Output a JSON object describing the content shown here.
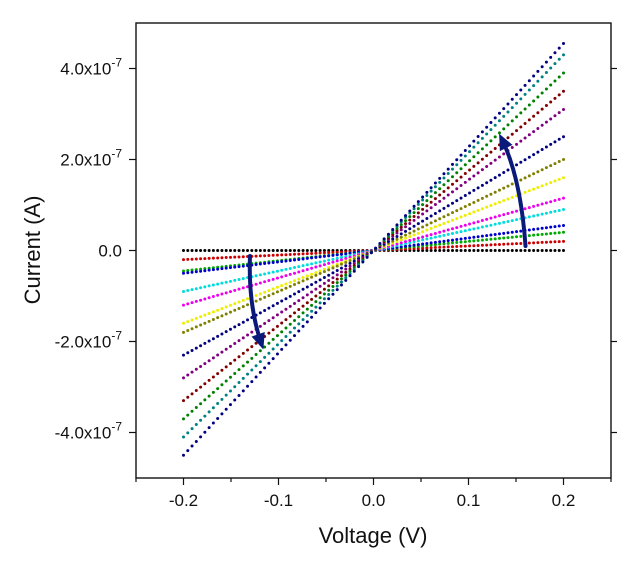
{
  "chart_data": {
    "type": "scatter",
    "title": "",
    "xlabel": "Voltage (V)",
    "ylabel": "Current (A)",
    "xlim": [
      -0.25,
      0.25
    ],
    "ylim": [
      -5e-07,
      5e-07
    ],
    "x_ticks": [
      {
        "value": -0.2,
        "label": "-0.2"
      },
      {
        "value": -0.1,
        "label": "-0.1"
      },
      {
        "value": 0.0,
        "label": "0.0"
      },
      {
        "value": 0.1,
        "label": "0.1"
      },
      {
        "value": 0.2,
        "label": "0.2"
      }
    ],
    "y_ticks": [
      {
        "value": 4e-07,
        "mantissa": "4.0x10",
        "exponent": "-7"
      },
      {
        "value": 2e-07,
        "mantissa": "2.0x10",
        "exponent": "-7"
      },
      {
        "value": 0.0,
        "mantissa": "0.0",
        "exponent": ""
      },
      {
        "value": -2e-07,
        "mantissa": "-2.0x10",
        "exponent": "-7"
      },
      {
        "value": -4e-07,
        "mantissa": "-4.0x10",
        "exponent": "-7"
      }
    ],
    "x_range": [
      -0.2,
      0.2
    ],
    "points_per_series": 90,
    "series": [
      {
        "color": "#000000",
        "values": [
          0.0,
          0.0
        ]
      },
      {
        "color": "#cc0000",
        "values": [
          -2e-08,
          2e-08
        ]
      },
      {
        "color": "#00aa00",
        "values": [
          -4.5e-08,
          4e-08
        ]
      },
      {
        "color": "#0000cc",
        "values": [
          -5e-08,
          5.5e-08
        ]
      },
      {
        "color": "#00dddd",
        "values": [
          -9e-08,
          9e-08
        ]
      },
      {
        "color": "#ee00ee",
        "values": [
          -1.2e-07,
          1.15e-07
        ]
      },
      {
        "color": "#eeee00",
        "values": [
          -1.6e-07,
          1.6e-07
        ]
      },
      {
        "color": "#808000",
        "values": [
          -1.8e-07,
          2e-07
        ]
      },
      {
        "color": "#000080",
        "values": [
          -2.3e-07,
          2.5e-07
        ]
      },
      {
        "color": "#800080",
        "values": [
          -2.8e-07,
          3.1e-07
        ]
      },
      {
        "color": "#800000",
        "values": [
          -3.3e-07,
          3.5e-07
        ]
      },
      {
        "color": "#008000",
        "values": [
          -3.7e-07,
          3.9e-07
        ]
      },
      {
        "color": "#008080",
        "values": [
          -4.1e-07,
          4.3e-07
        ]
      },
      {
        "color": "#000080",
        "values": [
          -4.5e-07,
          4.55e-07
        ]
      }
    ],
    "annotations": [
      {
        "type": "arrow",
        "color": "#0a1a7a",
        "from": [
          0.16,
          1e-08
        ],
        "via": [
          0.155,
          1.6e-07
        ],
        "to": [
          0.135,
          2.45e-07
        ]
      },
      {
        "type": "arrow",
        "color": "#0a1a7a",
        "from": [
          -0.13,
          -1.2e-08
        ],
        "via": [
          -0.132,
          -1.2e-07
        ],
        "to": [
          -0.118,
          -2.05e-07
        ]
      }
    ],
    "grid": false,
    "legend": "none"
  }
}
